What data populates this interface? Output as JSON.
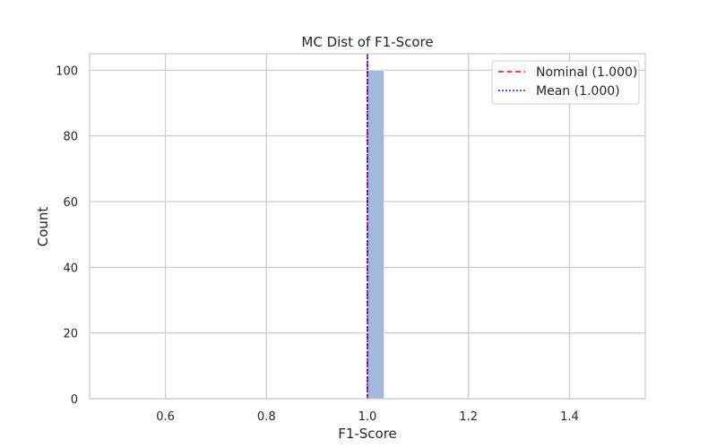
{
  "chart_data": {
    "type": "bar",
    "title": "MC Dist of F1-Score",
    "xlabel": "F1-Score",
    "ylabel": "Count",
    "xlim": [
      0.45,
      1.55
    ],
    "ylim": [
      0,
      105
    ],
    "x_ticks": [
      0.6,
      0.8,
      1.0,
      1.2,
      1.4
    ],
    "x_tick_labels": [
      "0.6",
      "0.8",
      "1.0",
      "1.2",
      "1.4"
    ],
    "y_ticks": [
      0,
      20,
      40,
      60,
      80,
      100
    ],
    "y_tick_labels": [
      "0",
      "20",
      "40",
      "60",
      "80",
      "100"
    ],
    "grid": true,
    "bins": [
      {
        "x0": 1.0,
        "x1": 1.033,
        "count": 100
      }
    ],
    "reference_lines": [
      {
        "name": "Nominal (1.000)",
        "x": 1.0,
        "color": "#ff0000",
        "style": "dashed"
      },
      {
        "name": "Mean (1.000)",
        "x": 1.0,
        "color": "#0000ff",
        "style": "dotted"
      }
    ],
    "legend_position": "top-right",
    "colors": {
      "bar": "#a3b8dc",
      "grid": "#cccccc",
      "axes": "#cccccc"
    }
  }
}
